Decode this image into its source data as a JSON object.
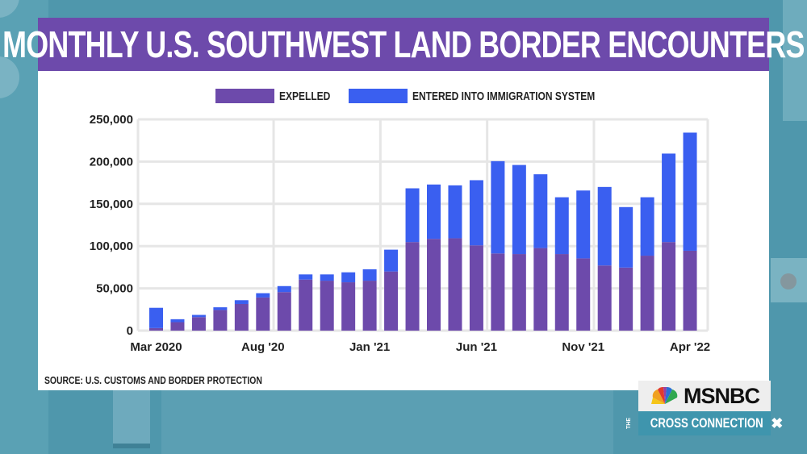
{
  "title": "MONTHLY U.S. SOUTHWEST LAND BORDER ENCOUNTERS",
  "source": "SOURCE: U.S. CUSTOMS AND BORDER PROTECTION",
  "colors": {
    "expelled": "#6d4aab",
    "entered": "#3a5ff0",
    "title_bg": "#6d4aab",
    "grid": "#e6e6e6"
  },
  "branding": {
    "network": "MSNBC",
    "show_prefix": "THE",
    "show": "CROSS CONNECTION",
    "show_mark": "✖"
  },
  "chart_data": {
    "type": "bar",
    "stacked": true,
    "title": "MONTHLY U.S. SOUTHWEST LAND BORDER ENCOUNTERS",
    "xlabel": "",
    "ylabel": "",
    "ylim": [
      0,
      250000
    ],
    "yticks": [
      0,
      50000,
      100000,
      150000,
      200000,
      250000
    ],
    "ytick_labels": [
      "0",
      "50,000",
      "100,000",
      "150,000",
      "200,000",
      "250,000"
    ],
    "grid": true,
    "legend": "top-center",
    "categories": [
      "Mar 2020",
      "Apr 2020",
      "May 2020",
      "Jun 2020",
      "Jul 2020",
      "Aug 2020",
      "Sep 2020",
      "Oct 2020",
      "Nov 2020",
      "Dec 2020",
      "Jan 2021",
      "Feb 2021",
      "Mar 2021",
      "Apr 2021",
      "May 2021",
      "Jun 2021",
      "Jul 2021",
      "Aug 2021",
      "Sep 2021",
      "Oct 2021",
      "Nov 2021",
      "Dec 2021",
      "Jan 2022",
      "Feb 2022",
      "Mar 2022",
      "Apr 2022"
    ],
    "xtick_labels": [
      {
        "index": 0,
        "label": "Mar 2020"
      },
      {
        "index": 5,
        "label": "Aug '20"
      },
      {
        "index": 10,
        "label": "Jan '21"
      },
      {
        "index": 15,
        "label": "Jun '21"
      },
      {
        "index": 20,
        "label": "Nov '21"
      },
      {
        "index": 25,
        "label": "Apr '22"
      }
    ],
    "series": [
      {
        "name": "EXPELLED",
        "values": [
          3000,
          10000,
          16000,
          24400,
          31500,
          39200,
          45600,
          60400,
          59100,
          57200,
          59100,
          70000,
          104800,
          108600,
          109300,
          100900,
          91300,
          90600,
          97700,
          90600,
          85500,
          77100,
          74600,
          88700,
          104800,
          94500
        ]
      },
      {
        "name": "ENTERED INTO IMMIGRATION SYSTEM",
        "values": [
          24000,
          3500,
          2600,
          3200,
          4500,
          5100,
          7100,
          6100,
          7400,
          11800,
          13500,
          25800,
          63600,
          64300,
          62600,
          77100,
          109200,
          105400,
          87300,
          67200,
          80300,
          92900,
          71600,
          69100,
          104700,
          139800
        ]
      }
    ]
  }
}
